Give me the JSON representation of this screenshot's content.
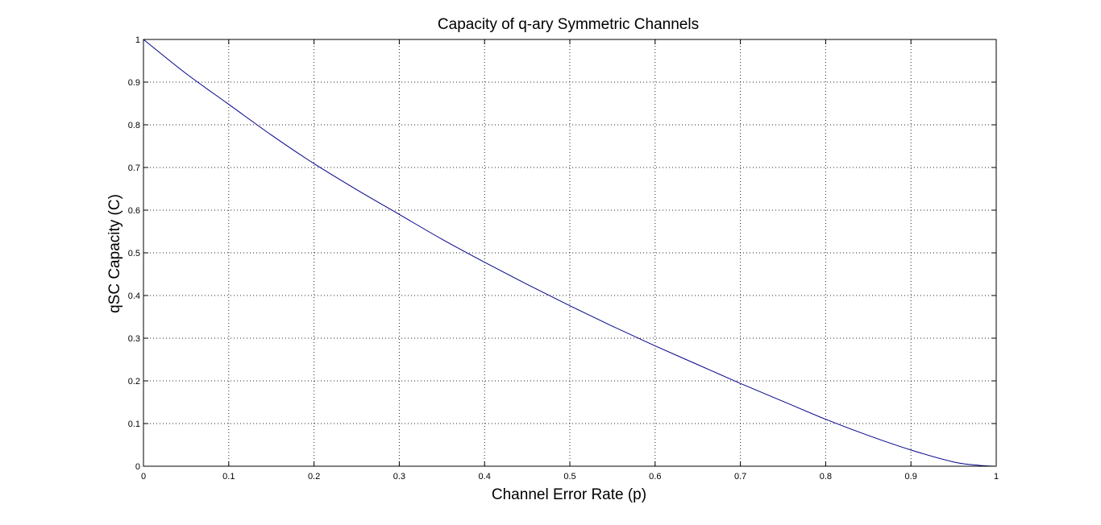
{
  "chart_data": {
    "type": "line",
    "title": "Capacity of q-ary Symmetric Channels",
    "xlabel": "Channel Error Rate (p)",
    "ylabel": "qSC Capacity (C)",
    "xlim": [
      0,
      1
    ],
    "ylim": [
      0,
      1
    ],
    "xticks": [
      "0",
      "0.1",
      "0.2",
      "0.3",
      "0.4",
      "0.5",
      "0.6",
      "0.7",
      "0.8",
      "0.9",
      "1"
    ],
    "yticks": [
      "0",
      "0.1",
      "0.2",
      "0.3",
      "0.4",
      "0.5",
      "0.6",
      "0.7",
      "0.8",
      "0.9",
      "1"
    ],
    "grid": true,
    "legend": "none",
    "series": [
      {
        "color": "#00008b",
        "x": [
          0,
          0.05,
          0.1,
          0.15,
          0.2,
          0.25,
          0.3,
          0.35,
          0.4,
          0.45,
          0.5,
          0.55,
          0.6,
          0.65,
          0.7,
          0.75,
          0.8,
          0.85,
          0.9,
          0.95,
          0.98,
          1
        ],
        "y": [
          1,
          0.92,
          0.848,
          0.776,
          0.709,
          0.648,
          0.59,
          0.532,
          0.478,
          0.426,
          0.376,
          0.328,
          0.282,
          0.238,
          0.194,
          0.152,
          0.11,
          0.072,
          0.038,
          0.01,
          0.002,
          0
        ]
      }
    ]
  }
}
